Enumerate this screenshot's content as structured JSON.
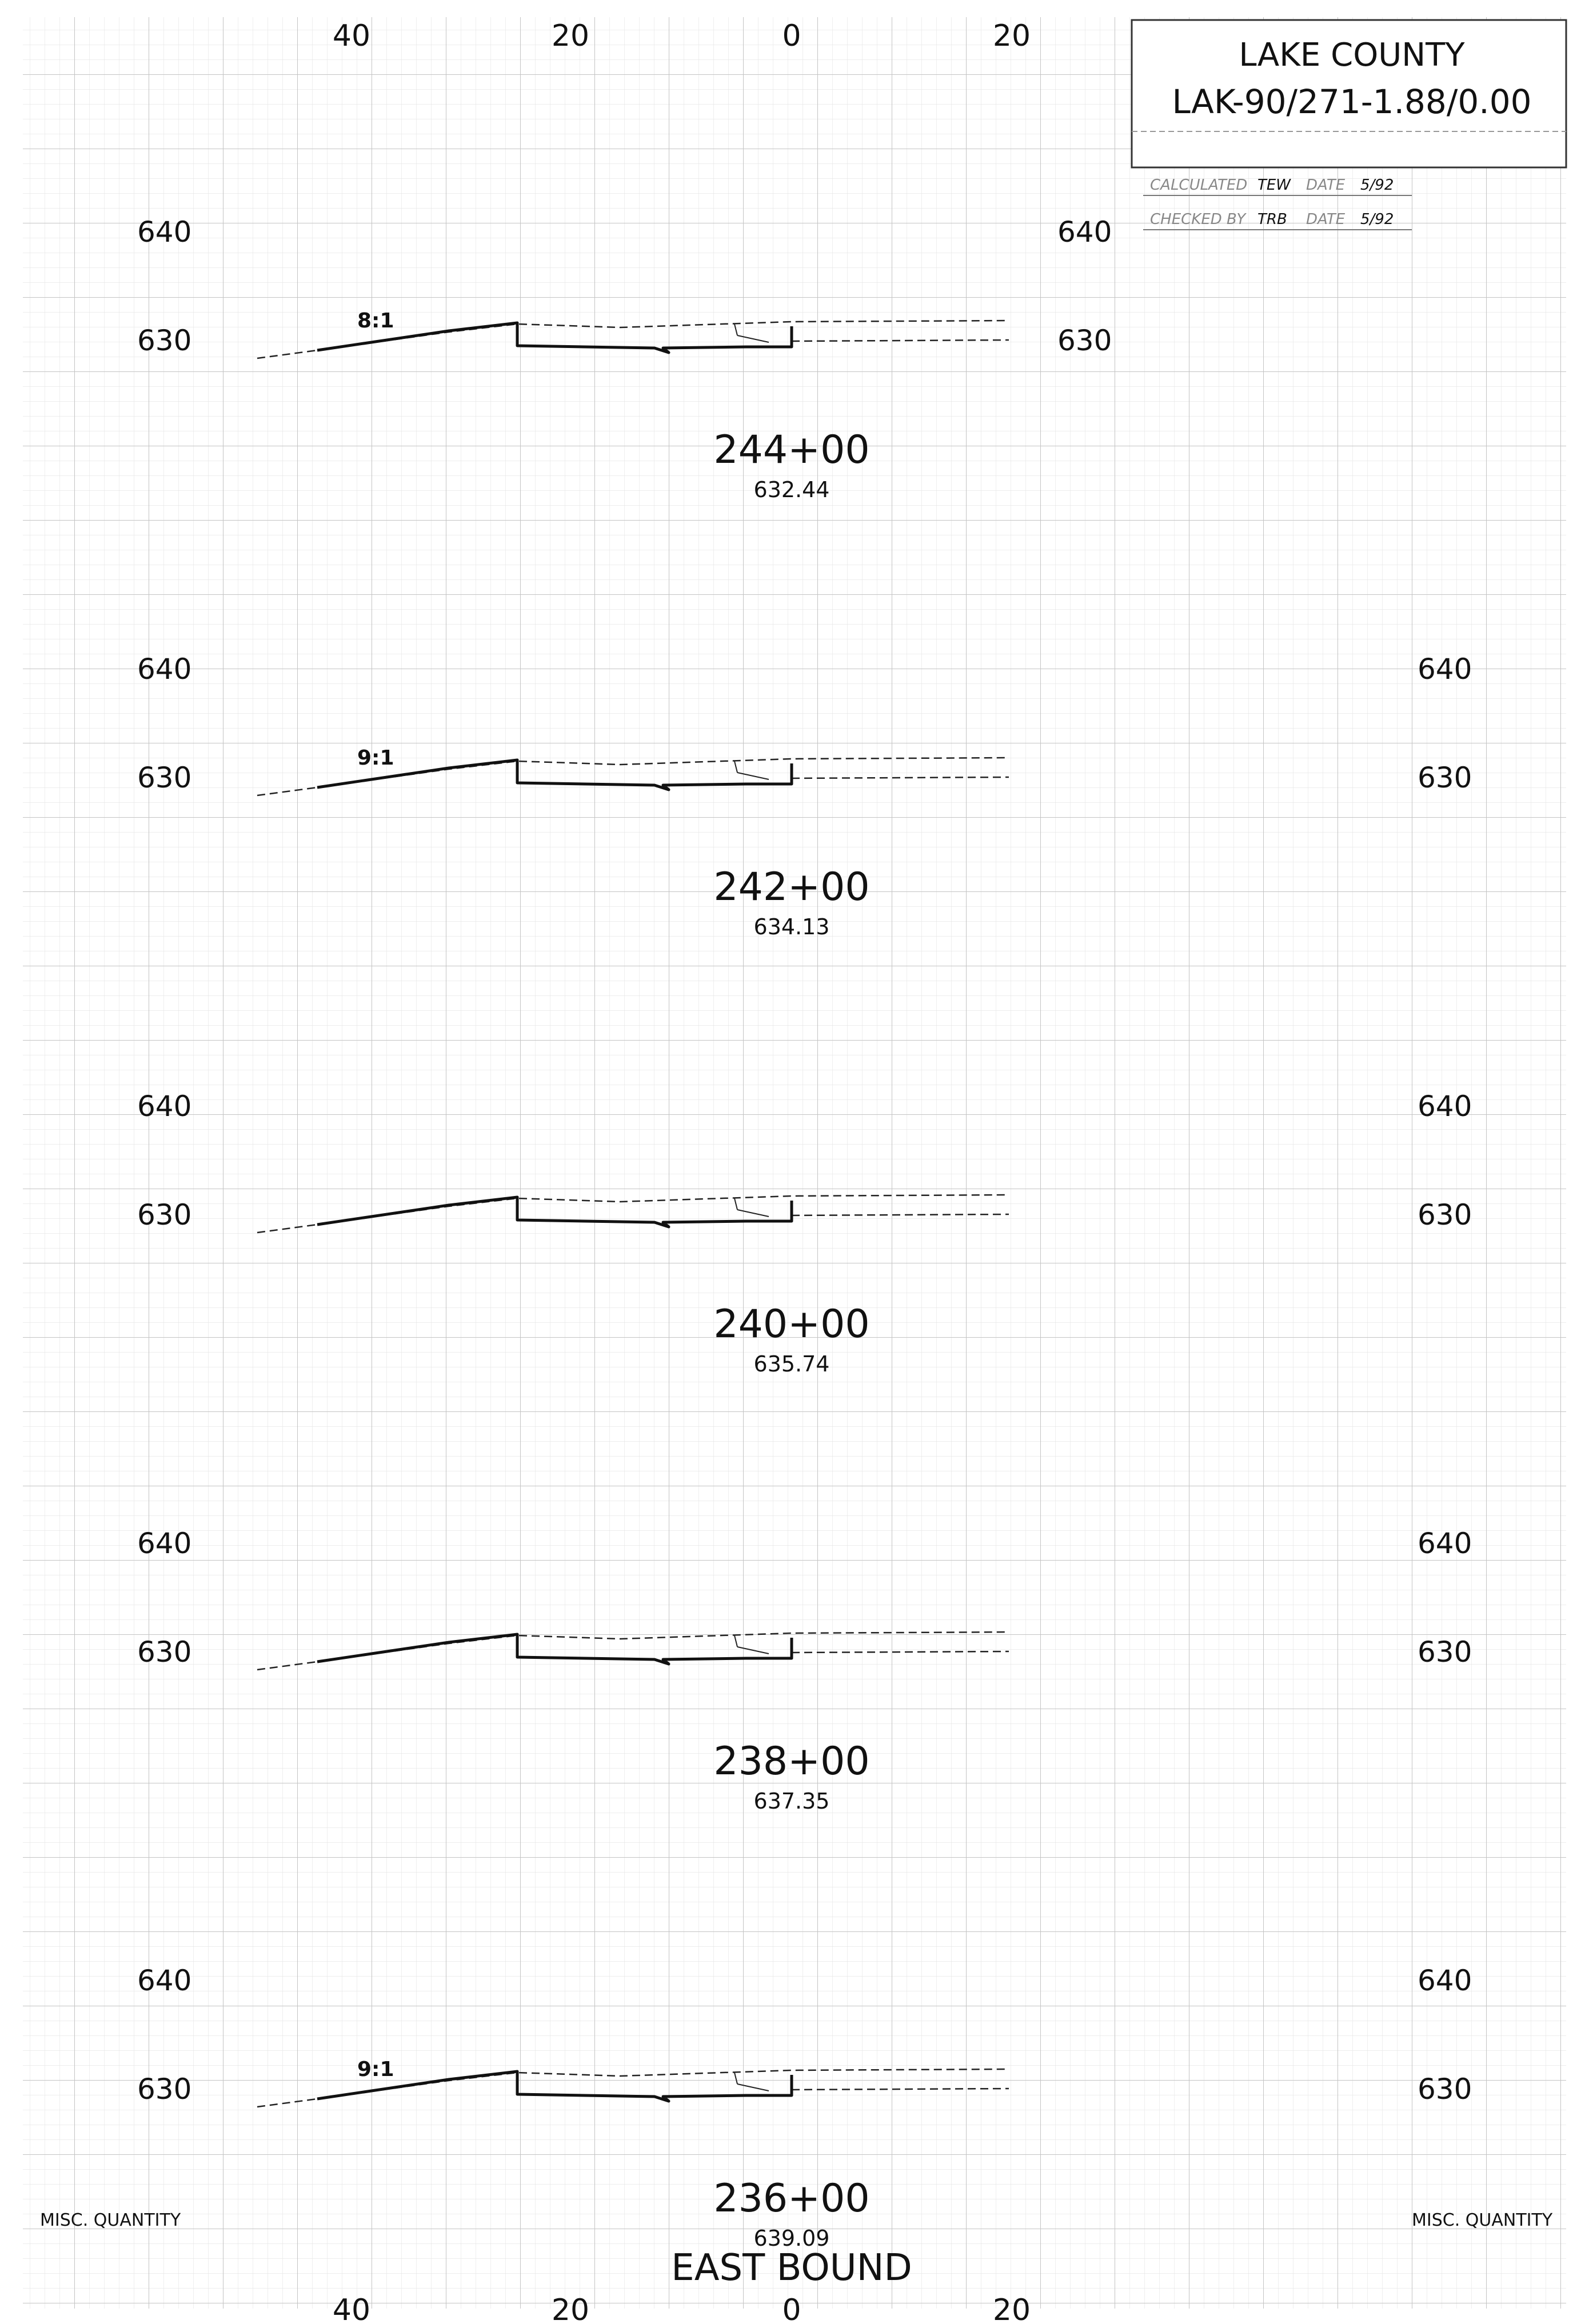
{
  "title_block": {
    "county": "LAKE COUNTY",
    "project": "LAK-90/271-1.88/0.00",
    "line1_label": "CALCULATED",
    "line1_initials": "TEW",
    "line1_date_label": "DATE",
    "line1_date": "5/92",
    "line2_label": "CHECKED BY",
    "line2_initials": "TRB",
    "line2_date_label": "DATE",
    "line2_date": "5/92"
  },
  "offset_axis": {
    "top_labels": [
      "40",
      "20",
      "0",
      "20"
    ],
    "bottom_labels": [
      "40",
      "20",
      "0",
      "20"
    ]
  },
  "sections": [
    {
      "station": "244+00",
      "grade_elevation": "632.44",
      "elev_labels": [
        "640",
        "630"
      ],
      "slope_label": "8:1"
    },
    {
      "station": "242+00",
      "grade_elevation": "634.13",
      "elev_labels": [
        "640",
        "630"
      ],
      "slope_label": "9:1"
    },
    {
      "station": "240+00",
      "grade_elevation": "635.74",
      "elev_labels": [
        "640",
        "630"
      ],
      "slope_label": ""
    },
    {
      "station": "238+00",
      "grade_elevation": "637.35",
      "elev_labels": [
        "640",
        "630"
      ],
      "slope_label": ""
    },
    {
      "station": "236+00",
      "grade_elevation": "639.09",
      "elev_labels": [
        "640",
        "630"
      ],
      "slope_label": "9:1"
    }
  ],
  "footer": {
    "misc_left": "MISC. QUANTITY",
    "misc_right": "MISC. QUANTITY",
    "direction": "EAST BOUND"
  },
  "colors": {
    "ink": "#111111",
    "grid_minor": "#e4e4e4",
    "grid_major": "#c4c4c4",
    "paper": "#ffffff"
  }
}
